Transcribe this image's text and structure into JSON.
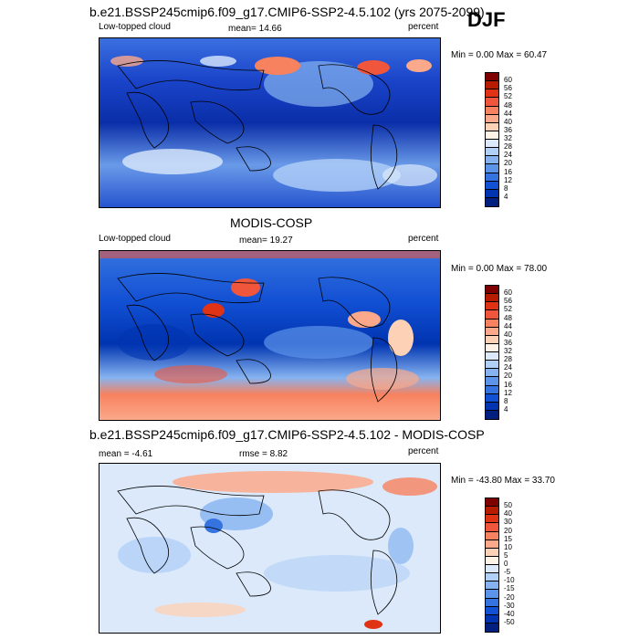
{
  "season": "DJF",
  "units": "percent",
  "panels": [
    {
      "title": "b.e21.BSSP245cmip6.f09_g17.CMIP6-SSP2-4.5.102 (yrs 2075-2099)",
      "left": "Low-topped cloud",
      "stat": "mean=  14.66",
      "range": "Min =   0.00 Max =  60.47",
      "levels": [
        "60",
        "56",
        "52",
        "48",
        "44",
        "40",
        "36",
        "32",
        "28",
        "24",
        "20",
        "16",
        "12",
        "8",
        "4"
      ],
      "colors": [
        "#7f0000",
        "#b71c00",
        "#e03214",
        "#f0563c",
        "#f7825f",
        "#fba98a",
        "#fdd1b6",
        "#fff2e6",
        "#dbe9fb",
        "#b1d0f7",
        "#86b3f0",
        "#5c94ea",
        "#3573e0",
        "#1250d4",
        "#0034b0",
        "#001f7f"
      ]
    },
    {
      "title": "MODIS-COSP",
      "left": "Low-topped cloud",
      "stat": "mean=  19.27",
      "range": "Min =   0.00 Max =  78.00",
      "levels": [
        "60",
        "56",
        "52",
        "48",
        "44",
        "40",
        "36",
        "32",
        "28",
        "24",
        "20",
        "16",
        "12",
        "8",
        "4"
      ],
      "colors": [
        "#7f0000",
        "#b71c00",
        "#e03214",
        "#f0563c",
        "#f7825f",
        "#fba98a",
        "#fdd1b6",
        "#fff2e6",
        "#dbe9fb",
        "#b1d0f7",
        "#86b3f0",
        "#5c94ea",
        "#3573e0",
        "#1250d4",
        "#0034b0",
        "#001f7f"
      ]
    },
    {
      "title": "b.e21.BSSP245cmip6.f09_g17.CMIP6-SSP2-4.5.102 - MODIS-COSP",
      "left": "mean =  -4.61",
      "stat": "rmse =   8.82",
      "range": "Min = -43.80 Max =  33.70",
      "levels": [
        "50",
        "40",
        "30",
        "20",
        "15",
        "10",
        "5",
        "0",
        "-5",
        "-10",
        "-15",
        "-20",
        "-30",
        "-40",
        "-50"
      ],
      "colors": [
        "#7f0000",
        "#b71c00",
        "#e03214",
        "#f0563c",
        "#f7825f",
        "#fba98a",
        "#fdd1b6",
        "#fff2e6",
        "#dbe9fb",
        "#b1d0f7",
        "#86b3f0",
        "#5c94ea",
        "#3573e0",
        "#1250d4",
        "#0034b0",
        "#001f7f"
      ]
    }
  ]
}
